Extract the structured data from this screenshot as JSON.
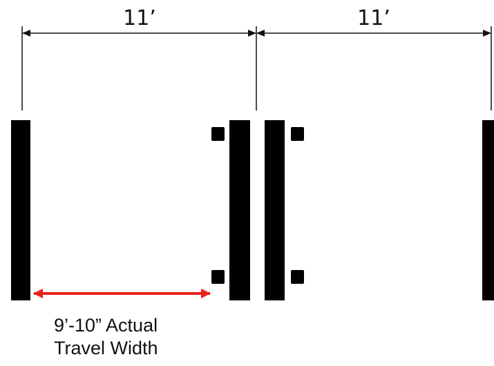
{
  "dimensions": {
    "left_lane_label": "11’",
    "right_lane_label": "11’"
  },
  "annotation": {
    "line1": "9’-10” Actual",
    "line2": "Travel Width"
  },
  "colors": {
    "stripe": "#000000",
    "dimension_line": "#111111",
    "travel_width_arrow": "#e8211d"
  }
}
